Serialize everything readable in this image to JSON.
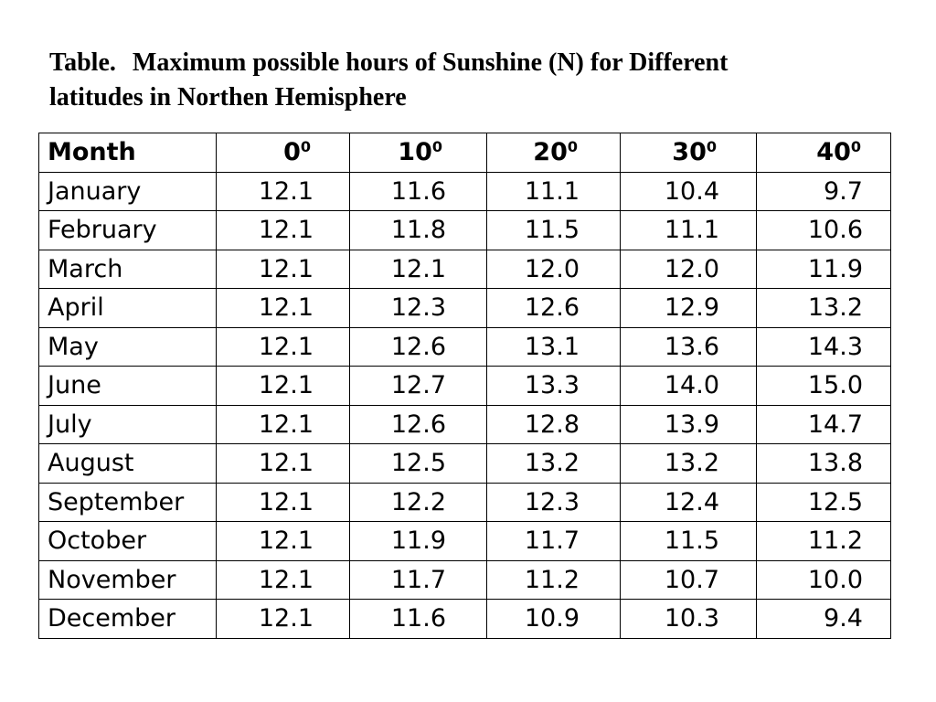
{
  "title": {
    "label": "Table.",
    "text_line1": "Maximum possible hours of Sunshine (N) for Different",
    "text_line2": "latitudes in Northen Hemisphere"
  },
  "table": {
    "header": {
      "month": "Month",
      "latitudes": [
        {
          "value": "0",
          "sup": "0"
        },
        {
          "value": "10",
          "sup": "0"
        },
        {
          "value": "20",
          "sup": "0"
        },
        {
          "value": "30",
          "sup": "0"
        },
        {
          "value": "40",
          "sup": "0"
        }
      ]
    },
    "rows": [
      {
        "month": "January",
        "values": [
          "12.1",
          "11.6",
          "11.1",
          "10.4",
          "9.7"
        ]
      },
      {
        "month": "February",
        "values": [
          "12.1",
          "11.8",
          "11.5",
          "11.1",
          "10.6"
        ]
      },
      {
        "month": "March",
        "values": [
          "12.1",
          "12.1",
          "12.0",
          "12.0",
          "11.9"
        ]
      },
      {
        "month": "April",
        "values": [
          "12.1",
          "12.3",
          "12.6",
          "12.9",
          "13.2"
        ]
      },
      {
        "month": "May",
        "values": [
          "12.1",
          "12.6",
          "13.1",
          "13.6",
          "14.3"
        ]
      },
      {
        "month": "June",
        "values": [
          "12.1",
          "12.7",
          "13.3",
          "14.0",
          "15.0"
        ]
      },
      {
        "month": "July",
        "values": [
          "12.1",
          "12.6",
          "12.8",
          "13.9",
          "14.7"
        ]
      },
      {
        "month": "August",
        "values": [
          "12.1",
          "12.5",
          "13.2",
          "13.2",
          "13.8"
        ]
      },
      {
        "month": "September",
        "values": [
          "12.1",
          "12.2",
          "12.3",
          "12.4",
          "12.5"
        ]
      },
      {
        "month": "October",
        "values": [
          "12.1",
          "11.9",
          "11.7",
          "11.5",
          "11.2"
        ]
      },
      {
        "month": "November",
        "values": [
          "12.1",
          "11.7",
          "11.2",
          "10.7",
          "10.0"
        ]
      },
      {
        "month": "December",
        "values": [
          "12.1",
          "11.6",
          "10.9",
          "10.3",
          "9.4"
        ]
      }
    ]
  }
}
